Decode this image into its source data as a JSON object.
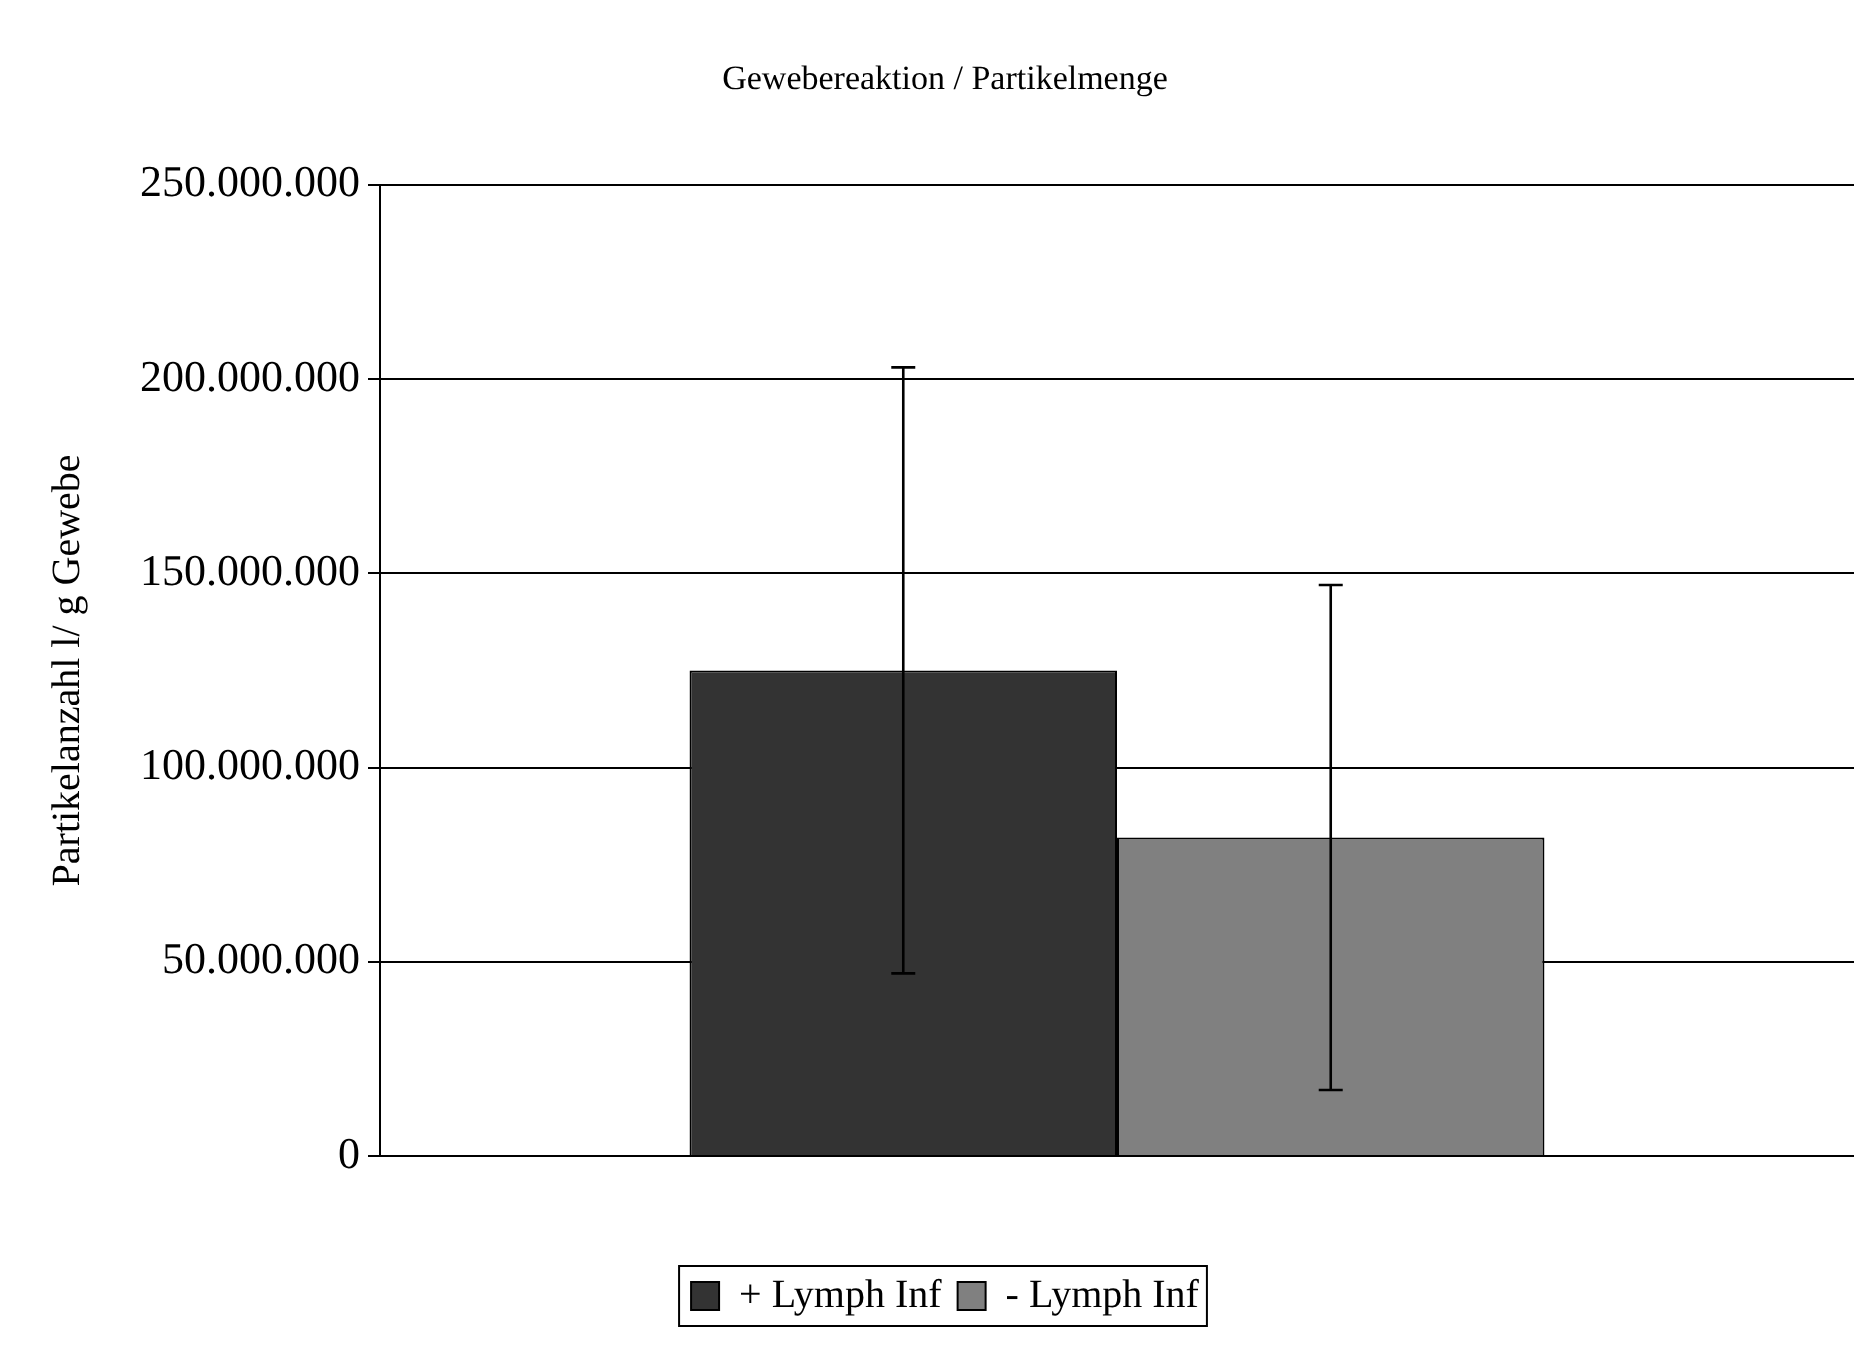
{
  "chart_data": {
    "type": "bar",
    "title": "Gewebereaktion / Partikelmenge",
    "ylabel": "Partikelanzahl l/ g Gewebe",
    "categories": [
      null
    ],
    "series": [
      {
        "name": "+ Lymph Inf",
        "color": "#333333",
        "values": [
          125000000
        ],
        "errors": [
          78000000
        ]
      },
      {
        "name": "- Lymph Inf",
        "color": "#808080",
        "values": [
          82000000
        ],
        "errors": [
          65000000
        ]
      }
    ],
    "ylim": [
      0,
      250000000
    ],
    "yticks": [
      0,
      {
        "value": 50000000,
        "label": "50.000.000"
      },
      {
        "value": 100000000,
        "label": "100.000.000"
      },
      {
        "value": 150000000,
        "label": "150.000.000"
      },
      {
        "value": 200000000,
        "label": "200.000.000"
      },
      {
        "value": 250000000,
        "label": "250.000.000"
      }
    ],
    "grid": "y",
    "legend": "bottom"
  }
}
